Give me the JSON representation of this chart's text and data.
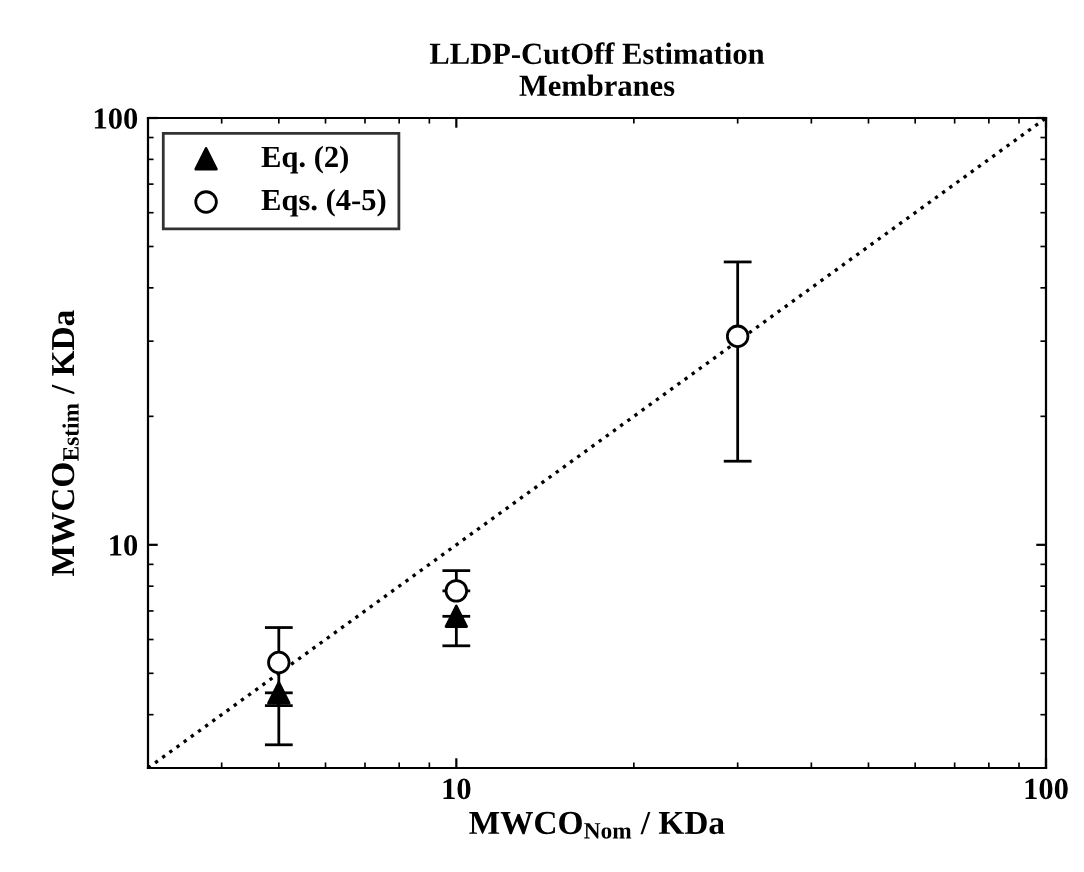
{
  "chart_data": {
    "type": "scatter",
    "title": "LLDP-CutOff Estimation\nMembranes",
    "xlabel": "MWCO$_{Nom}$ / KDa",
    "ylabel": "MWCO$_{Estim}$ / KDa",
    "log": "xy",
    "xlim": [
      3,
      100
    ],
    "ylim": [
      3,
      100
    ],
    "xticks": [
      10,
      100
    ],
    "yticks": [
      10,
      100
    ],
    "legend": "top left",
    "grid": false,
    "series": [
      {
        "name": "Eq. (2)",
        "marker": "triangle",
        "color": "#000000",
        "x": [
          5,
          10
        ],
        "values": [
          4.5,
          6.8
        ],
        "errors": [
          [
            3.4,
            4.5
          ],
          [
            5.8,
            6.8
          ]
        ]
      },
      {
        "name": "Eqs. (4-5)",
        "marker": "circle",
        "color": "#ffffff",
        "x": [
          5,
          10,
          30
        ],
        "values": [
          5.3,
          7.8,
          30.8
        ],
        "errors": [
          [
            4.2,
            6.4
          ],
          [
            7.8,
            8.7
          ],
          [
            15.7,
            46
          ]
        ]
      },
      {
        "type": "line",
        "line_style": "dotted",
        "color": "#000000",
        "x": [
          3,
          100
        ],
        "values": [
          3,
          100
        ]
      }
    ]
  }
}
